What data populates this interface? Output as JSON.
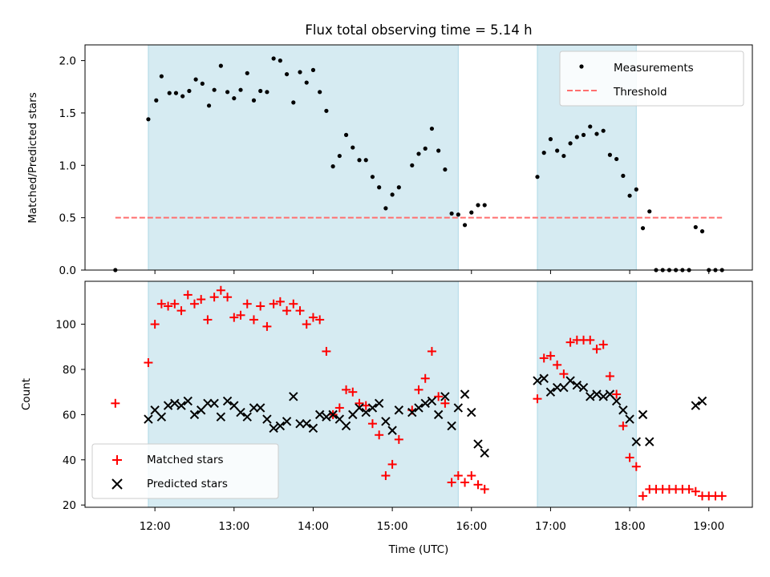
{
  "chart_data": [
    {
      "type": "scatter",
      "title": "Flux total observing time = 5.14 h",
      "xlabel": "",
      "ylabel": "Matched/Predicted stars",
      "xlim": [
        "11:07",
        "19:33"
      ],
      "ylim": [
        0,
        2.15
      ],
      "yticks": [
        "0.0",
        "0.5",
        "1.0",
        "1.5",
        "2.0"
      ],
      "shaded_intervals": [
        [
          "11:55",
          "15:50"
        ],
        [
          "16:50",
          "18:05"
        ]
      ],
      "legend_position": "upper right",
      "series": [
        {
          "name": "Measurements",
          "color": "#000000",
          "marker": "dot",
          "points": [
            [
              "11:30",
              0.0
            ],
            [
              "11:55",
              1.44
            ],
            [
              "12:01",
              1.62
            ],
            [
              "12:05",
              1.85
            ],
            [
              "12:11",
              1.69
            ],
            [
              "12:16",
              1.69
            ],
            [
              "12:21",
              1.66
            ],
            [
              "12:26",
              1.71
            ],
            [
              "12:31",
              1.82
            ],
            [
              "12:36",
              1.78
            ],
            [
              "12:41",
              1.57
            ],
            [
              "12:45",
              1.72
            ],
            [
              "12:50",
              1.95
            ],
            [
              "12:55",
              1.7
            ],
            [
              "13:00",
              1.64
            ],
            [
              "13:05",
              1.72
            ],
            [
              "13:10",
              1.88
            ],
            [
              "13:15",
              1.62
            ],
            [
              "13:20",
              1.71
            ],
            [
              "13:25",
              1.7
            ],
            [
              "13:30",
              2.02
            ],
            [
              "13:35",
              2.0
            ],
            [
              "13:40",
              1.87
            ],
            [
              "13:45",
              1.6
            ],
            [
              "13:50",
              1.89
            ],
            [
              "13:55",
              1.79
            ],
            [
              "14:00",
              1.91
            ],
            [
              "14:05",
              1.7
            ],
            [
              "14:10",
              1.52
            ],
            [
              "14:15",
              0.99
            ],
            [
              "14:20",
              1.09
            ],
            [
              "14:25",
              1.29
            ],
            [
              "14:30",
              1.17
            ],
            [
              "14:35",
              1.05
            ],
            [
              "14:40",
              1.05
            ],
            [
              "14:45",
              0.89
            ],
            [
              "14:50",
              0.79
            ],
            [
              "14:55",
              0.59
            ],
            [
              "15:00",
              0.72
            ],
            [
              "15:05",
              0.79
            ],
            [
              "15:15",
              1.0
            ],
            [
              "15:20",
              1.11
            ],
            [
              "15:25",
              1.16
            ],
            [
              "15:30",
              1.35
            ],
            [
              "15:35",
              1.14
            ],
            [
              "15:40",
              0.96
            ],
            [
              "15:45",
              0.54
            ],
            [
              "15:50",
              0.53
            ],
            [
              "15:55",
              0.43
            ],
            [
              "16:00",
              0.55
            ],
            [
              "16:05",
              0.62
            ],
            [
              "16:10",
              0.62
            ],
            [
              "16:50",
              0.89
            ],
            [
              "16:55",
              1.12
            ],
            [
              "17:00",
              1.25
            ],
            [
              "17:05",
              1.14
            ],
            [
              "17:10",
              1.09
            ],
            [
              "17:15",
              1.21
            ],
            [
              "17:20",
              1.27
            ],
            [
              "17:25",
              1.29
            ],
            [
              "17:30",
              1.37
            ],
            [
              "17:35",
              1.3
            ],
            [
              "17:40",
              1.33
            ],
            [
              "17:45",
              1.1
            ],
            [
              "17:50",
              1.06
            ],
            [
              "17:55",
              0.9
            ],
            [
              "18:00",
              0.71
            ],
            [
              "18:05",
              0.77
            ],
            [
              "18:10",
              0.4
            ],
            [
              "18:15",
              0.56
            ],
            [
              "18:20",
              0.0
            ],
            [
              "18:25",
              0.0
            ],
            [
              "18:30",
              0.0
            ],
            [
              "18:35",
              0.0
            ],
            [
              "18:40",
              0.0
            ],
            [
              "18:45",
              0.0
            ],
            [
              "18:50",
              0.41
            ],
            [
              "18:55",
              0.37
            ],
            [
              "19:00",
              0.0
            ],
            [
              "19:05",
              0.0
            ],
            [
              "19:10",
              0.0
            ]
          ]
        },
        {
          "name": "Threshold",
          "color": "#ff6f6f",
          "style": "dashed",
          "points": [
            [
              "11:30",
              0.5
            ],
            [
              "19:10",
              0.5
            ]
          ]
        }
      ]
    },
    {
      "type": "scatter",
      "xlabel": "Time (UTC)",
      "ylabel": "Count",
      "xlim": [
        "11:07",
        "19:33"
      ],
      "ylim": [
        19,
        119
      ],
      "xticks": [
        "12:00",
        "13:00",
        "14:00",
        "15:00",
        "16:00",
        "17:00",
        "18:00",
        "19:00"
      ],
      "yticks": [
        "20",
        "40",
        "60",
        "80",
        "100"
      ],
      "shaded_intervals": [
        [
          "11:55",
          "15:50"
        ],
        [
          "16:50",
          "18:05"
        ]
      ],
      "legend_position": "lower left",
      "series": [
        {
          "name": "Matched stars",
          "color": "#ff0000",
          "marker": "plus",
          "points": [
            [
              "11:30",
              65
            ],
            [
              "11:55",
              83
            ],
            [
              "12:00",
              100
            ],
            [
              "12:05",
              109
            ],
            [
              "12:10",
              108
            ],
            [
              "12:15",
              109
            ],
            [
              "12:20",
              106
            ],
            [
              "12:25",
              113
            ],
            [
              "12:30",
              109
            ],
            [
              "12:35",
              111
            ],
            [
              "12:40",
              102
            ],
            [
              "12:45",
              112
            ],
            [
              "12:50",
              115
            ],
            [
              "12:55",
              112
            ],
            [
              "13:00",
              103
            ],
            [
              "13:05",
              104
            ],
            [
              "13:10",
              109
            ],
            [
              "13:15",
              102
            ],
            [
              "13:20",
              108
            ],
            [
              "13:25",
              99
            ],
            [
              "13:30",
              109
            ],
            [
              "13:35",
              110
            ],
            [
              "13:40",
              106
            ],
            [
              "13:45",
              109
            ],
            [
              "13:50",
              106
            ],
            [
              "13:55",
              100
            ],
            [
              "14:00",
              103
            ],
            [
              "14:05",
              102
            ],
            [
              "14:10",
              88
            ],
            [
              "14:15",
              60
            ],
            [
              "14:20",
              63
            ],
            [
              "14:25",
              71
            ],
            [
              "14:30",
              70
            ],
            [
              "14:35",
              65
            ],
            [
              "14:40",
              64
            ],
            [
              "14:45",
              56
            ],
            [
              "14:50",
              51
            ],
            [
              "14:55",
              33
            ],
            [
              "15:00",
              38
            ],
            [
              "15:05",
              49
            ],
            [
              "15:15",
              62
            ],
            [
              "15:20",
              71
            ],
            [
              "15:25",
              76
            ],
            [
              "15:30",
              88
            ],
            [
              "15:35",
              68
            ],
            [
              "15:40",
              65
            ],
            [
              "15:45",
              30
            ],
            [
              "15:50",
              33
            ],
            [
              "15:55",
              30
            ],
            [
              "16:00",
              33
            ],
            [
              "16:05",
              29
            ],
            [
              "16:10",
              27
            ],
            [
              "16:50",
              67
            ],
            [
              "16:55",
              85
            ],
            [
              "17:00",
              86
            ],
            [
              "17:05",
              82
            ],
            [
              "17:10",
              78
            ],
            [
              "17:15",
              92
            ],
            [
              "17:20",
              93
            ],
            [
              "17:25",
              93
            ],
            [
              "17:30",
              93
            ],
            [
              "17:35",
              89
            ],
            [
              "17:40",
              91
            ],
            [
              "17:45",
              77
            ],
            [
              "17:50",
              69
            ],
            [
              "17:55",
              55
            ],
            [
              "18:00",
              41
            ],
            [
              "18:05",
              37
            ],
            [
              "18:10",
              24
            ],
            [
              "18:15",
              27
            ],
            [
              "18:20",
              27
            ],
            [
              "18:25",
              27
            ],
            [
              "18:30",
              27
            ],
            [
              "18:35",
              27
            ],
            [
              "18:40",
              27
            ],
            [
              "18:45",
              27
            ],
            [
              "18:50",
              26
            ],
            [
              "18:55",
              24
            ],
            [
              "19:00",
              24
            ],
            [
              "19:05",
              24
            ],
            [
              "19:10",
              24
            ]
          ]
        },
        {
          "name": "Predicted stars",
          "color": "#000000",
          "marker": "x",
          "points": [
            [
              "11:55",
              58
            ],
            [
              "12:00",
              62
            ],
            [
              "12:05",
              59
            ],
            [
              "12:10",
              64
            ],
            [
              "12:15",
              65
            ],
            [
              "12:20",
              64
            ],
            [
              "12:25",
              66
            ],
            [
              "12:30",
              60
            ],
            [
              "12:35",
              62
            ],
            [
              "12:40",
              65
            ],
            [
              "12:45",
              65
            ],
            [
              "12:50",
              59
            ],
            [
              "12:55",
              66
            ],
            [
              "13:00",
              64
            ],
            [
              "13:05",
              61
            ],
            [
              "13:10",
              59
            ],
            [
              "13:15",
              63
            ],
            [
              "13:20",
              63
            ],
            [
              "13:25",
              58
            ],
            [
              "13:30",
              54
            ],
            [
              "13:35",
              55
            ],
            [
              "13:40",
              57
            ],
            [
              "13:45",
              68
            ],
            [
              "13:50",
              56
            ],
            [
              "13:55",
              56
            ],
            [
              "14:00",
              54
            ],
            [
              "14:05",
              60
            ],
            [
              "14:10",
              59
            ],
            [
              "14:15",
              60
            ],
            [
              "14:20",
              58
            ],
            [
              "14:25",
              55
            ],
            [
              "14:30",
              60
            ],
            [
              "14:35",
              63
            ],
            [
              "14:40",
              61
            ],
            [
              "14:45",
              63
            ],
            [
              "14:50",
              65
            ],
            [
              "14:55",
              57
            ],
            [
              "15:00",
              53
            ],
            [
              "15:05",
              62
            ],
            [
              "15:15",
              61
            ],
            [
              "15:20",
              63
            ],
            [
              "15:25",
              65
            ],
            [
              "15:30",
              66
            ],
            [
              "15:35",
              60
            ],
            [
              "15:40",
              68
            ],
            [
              "15:45",
              55
            ],
            [
              "15:50",
              63
            ],
            [
              "15:55",
              69
            ],
            [
              "16:00",
              61
            ],
            [
              "16:05",
              47
            ],
            [
              "16:10",
              43
            ],
            [
              "16:50",
              75
            ],
            [
              "16:55",
              76
            ],
            [
              "17:00",
              70
            ],
            [
              "17:05",
              72
            ],
            [
              "17:10",
              72
            ],
            [
              "17:15",
              75
            ],
            [
              "17:20",
              73
            ],
            [
              "17:25",
              72
            ],
            [
              "17:30",
              68
            ],
            [
              "17:35",
              69
            ],
            [
              "17:40",
              68
            ],
            [
              "17:45",
              69
            ],
            [
              "17:50",
              66
            ],
            [
              "17:55",
              62
            ],
            [
              "18:00",
              58
            ],
            [
              "18:05",
              48
            ],
            [
              "18:10",
              60
            ],
            [
              "18:15",
              48
            ],
            [
              "18:50",
              64
            ],
            [
              "18:55",
              66
            ]
          ]
        }
      ]
    }
  ]
}
